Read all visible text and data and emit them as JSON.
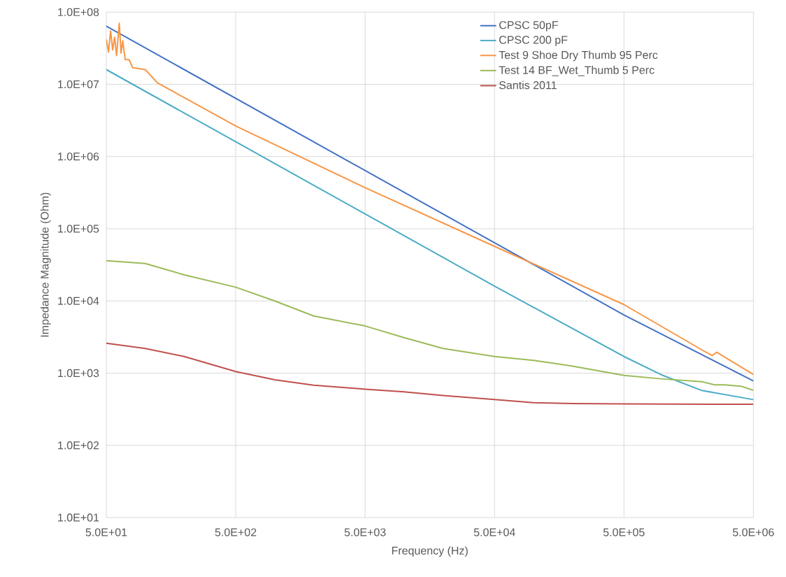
{
  "chart_data": {
    "type": "line",
    "xlabel": "Frequency (Hz)",
    "ylabel": "Impedance Magnitude (Ohm)",
    "log": "xy",
    "grid": true,
    "legend": "top right",
    "marker": "none",
    "line_style": "solid",
    "xlim": [
      50,
      5000000
    ],
    "ylim": [
      10,
      100000000
    ],
    "xticks": [
      {
        "value": 50,
        "label": "5.0E+01"
      },
      {
        "value": 500,
        "label": "5.0E+02"
      },
      {
        "value": 5000,
        "label": "5.0E+03"
      },
      {
        "value": 50000,
        "label": "5.0E+04"
      },
      {
        "value": 500000,
        "label": "5.0E+05"
      },
      {
        "value": 5000000,
        "label": "5.0E+06"
      }
    ],
    "yticks": [
      {
        "value": 10,
        "label": "1.0E+01"
      },
      {
        "value": 100,
        "label": "1.0E+02"
      },
      {
        "value": 1000,
        "label": "1.0E+03"
      },
      {
        "value": 10000,
        "label": "1.0E+04"
      },
      {
        "value": 100000,
        "label": "1.0E+05"
      },
      {
        "value": 1000000,
        "label": "1.0E+06"
      },
      {
        "value": 10000000,
        "label": "1.0E+07"
      },
      {
        "value": 100000000,
        "label": "1.0E+08"
      }
    ],
    "series": [
      {
        "name": "CPSC 50pF",
        "color": "#4472c4",
        "x": [
          50,
          500,
          5000,
          50000,
          500000,
          5000000
        ],
        "values": [
          64000000,
          6400000,
          640000,
          64000,
          6400,
          780
        ]
      },
      {
        "name": "CPSC 200 pF",
        "color": "#4bacc6",
        "x": [
          50,
          500,
          5000,
          50000,
          500000,
          1000000,
          2000000,
          5000000
        ],
        "values": [
          16000000,
          1600000,
          160000,
          16000,
          1700,
          930,
          575,
          430
        ]
      },
      {
        "name": "Test 9 Shoe Dry Thumb 95 Perc",
        "color": "#f79646",
        "x": [
          50,
          52,
          54,
          56,
          58,
          60,
          63,
          65,
          67,
          70,
          75,
          80,
          100,
          124,
          500,
          5000,
          50000,
          500000,
          2000000,
          2400000,
          2600000,
          2800000,
          5000000
        ],
        "values": [
          42000000,
          28000000,
          55000000,
          30000000,
          45000000,
          25000000,
          70000000,
          27000000,
          40000000,
          22000000,
          22000000,
          17000000,
          16000000,
          10500000,
          2650000,
          370000,
          57000,
          8900,
          2100,
          1750,
          1950,
          1800,
          960
        ]
      },
      {
        "name": "Test 14 BF_Wet_Thumb 5 Perc",
        "color": "#9bbb59",
        "x": [
          50,
          100,
          200,
          500,
          1000,
          2000,
          5000,
          10000,
          20000,
          50000,
          100000,
          150000,
          200000,
          500000,
          1000000,
          2000000,
          2500000,
          3000000,
          4000000,
          5000000
        ],
        "values": [
          36000,
          33000,
          23000,
          15500,
          10000,
          6200,
          4500,
          3100,
          2200,
          1700,
          1500,
          1350,
          1250,
          930,
          830,
          760,
          690,
          690,
          660,
          580
        ]
      },
      {
        "name": "Santis 2011",
        "color": "#c0504d",
        "x": [
          50,
          100,
          200,
          500,
          1000,
          2000,
          5000,
          10000,
          20000,
          50000,
          100000,
          200000,
          500000,
          5000000
        ],
        "values": [
          2600,
          2200,
          1700,
          1050,
          810,
          680,
          600,
          550,
          490,
          430,
          390,
          380,
          375,
          370
        ]
      }
    ]
  }
}
